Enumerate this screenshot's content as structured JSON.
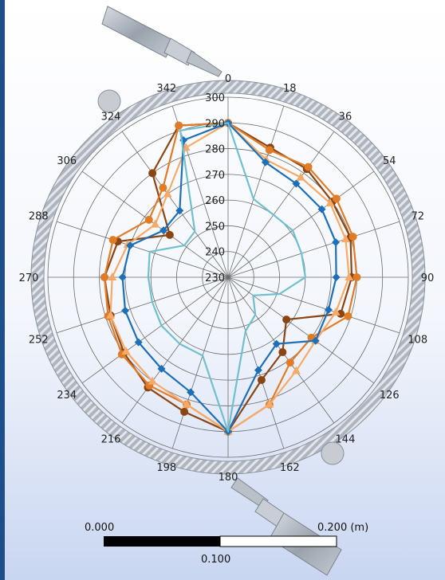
{
  "chart_data": {
    "type": "radar",
    "angle_labels": [
      "0",
      "18",
      "36",
      "54",
      "72",
      "90",
      "108",
      "126",
      "144",
      "162",
      "180",
      "198",
      "216",
      "234",
      "252",
      "270",
      "288",
      "306",
      "324",
      "342"
    ],
    "angles": [
      0,
      18,
      36,
      54,
      72,
      90,
      108,
      126,
      144,
      162,
      180,
      198,
      216,
      234,
      252,
      270,
      288,
      306,
      324,
      342
    ],
    "radial_ticks": [
      230,
      240,
      250,
      260,
      270,
      280,
      290,
      300
    ],
    "rlim": [
      230,
      300
    ],
    "grid": true,
    "series": [
      {
        "color": "#8b4512",
        "marker": "circle",
        "values": [
          290,
          283,
          282,
          280,
          280,
          278,
          276,
          258,
          266,
          272,
          290,
          285,
          283,
          280,
          278,
          278,
          275,
          258,
          280,
          292
        ]
      },
      {
        "color": "#e07c28",
        "marker": "circle",
        "values": [
          290,
          282,
          283,
          282,
          281,
          280,
          279,
          270,
          271,
          282,
          290,
          282,
          282,
          281,
          279,
          278,
          277,
          268,
          273,
          292
        ]
      },
      {
        "color": "#f5aa6a",
        "marker": "triangle",
        "values": [
          290,
          278,
          278,
          279,
          278,
          277,
          274,
          272,
          275,
          282,
          290,
          282,
          280,
          279,
          278,
          275,
          271,
          265,
          270,
          283
        ]
      },
      {
        "color": "#1d6fb8",
        "marker": "diamond",
        "values": [
          290,
          277,
          275,
          275,
          274,
          272,
          271,
          272,
          262,
          268,
          290,
          277,
          274,
          273,
          272,
          271,
          270,
          261,
          262,
          286
        ]
      },
      {
        "color": "#6fc0cf",
        "marker": "none",
        "values": [
          290,
          262,
          260,
          261,
          260,
          260,
          251,
          242,
          248,
          252,
          290,
          262,
          262,
          262,
          261,
          261,
          262,
          251,
          252,
          290
        ]
      }
    ],
    "scale_bar": {
      "left_label": "0.000",
      "mid_label": "0.100",
      "right_label": "0.200 (m)"
    }
  }
}
